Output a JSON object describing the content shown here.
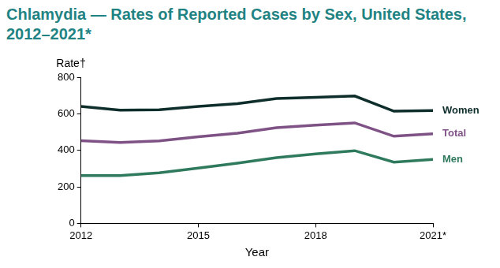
{
  "chart_data": {
    "type": "line",
    "title": "Chlamydia — Rates of Reported Cases by Sex, United States, 2012–2021*",
    "x_label": "Year",
    "y_label": "Rate†",
    "x": [
      2012,
      2013,
      2014,
      2015,
      2016,
      2017,
      2018,
      2019,
      2020,
      2021
    ],
    "series": [
      {
        "name": "Women",
        "color": "#0e2e2c",
        "values": [
          640,
          620,
          622,
          640,
          655,
          683,
          690,
          697,
          614,
          618
        ]
      },
      {
        "name": "Total",
        "color": "#7f5286",
        "values": [
          453,
          443,
          452,
          474,
          494,
          524,
          538,
          550,
          477,
          490
        ]
      },
      {
        "name": "Men",
        "color": "#2f7a5c",
        "values": [
          262,
          262,
          277,
          303,
          330,
          360,
          380,
          398,
          335,
          350
        ]
      }
    ],
    "xlim": [
      2012,
      2021
    ],
    "xticks": [
      2012,
      2015,
      2018,
      {
        "value": 2021,
        "label": "2021*"
      }
    ],
    "ylim": [
      0,
      800
    ],
    "yticks": [
      0,
      200,
      400,
      600,
      800
    ],
    "grid": false
  }
}
